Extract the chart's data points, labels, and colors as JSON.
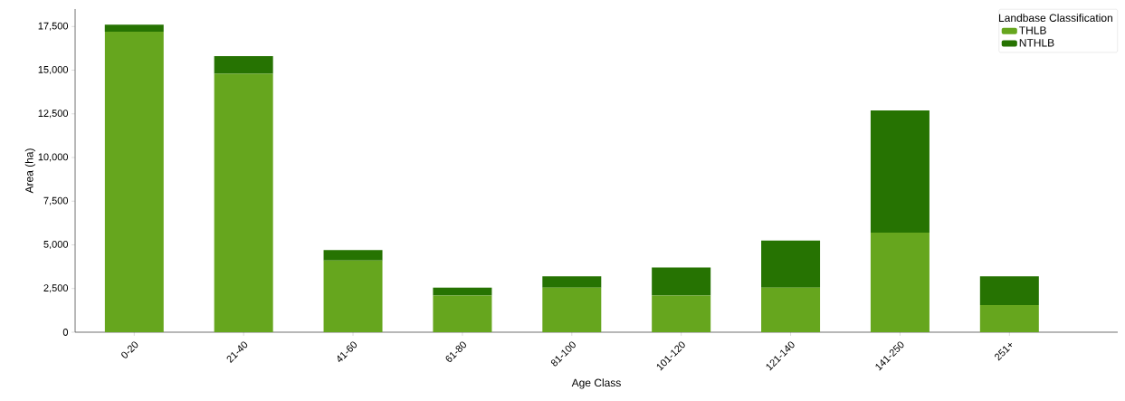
{
  "chart_data": {
    "type": "bar",
    "stacked": true,
    "xlabel": "Age Class",
    "ylabel": "Area (ha)",
    "legend_title": "Landbase Classification",
    "legend": "top right",
    "categories": [
      "0-20",
      "21-40",
      "41-60",
      "61-80",
      "81-100",
      "101-120",
      "121-140",
      "141-250",
      "251+"
    ],
    "series": [
      {
        "name": "THLB",
        "color": "#66a61e",
        "values": [
          17200,
          14800,
          4100,
          2100,
          2550,
          2100,
          2550,
          5700,
          1550
        ]
      },
      {
        "name": "NTHLB",
        "color": "#267302",
        "values": [
          400,
          1000,
          600,
          450,
          650,
          1600,
          2700,
          7000,
          1650
        ]
      }
    ],
    "ylim": [
      0,
      18500
    ],
    "yticks": [
      0,
      {
        "value": 2500,
        "label": "2,500"
      },
      {
        "value": 5000,
        "label": "5,000"
      },
      {
        "value": 7500,
        "label": "7,500"
      },
      {
        "value": 10000,
        "label": "10,000"
      },
      {
        "value": 12500,
        "label": "12,500"
      },
      {
        "value": 15000,
        "label": "15,000"
      },
      {
        "value": 17500,
        "label": "17,500"
      }
    ]
  }
}
